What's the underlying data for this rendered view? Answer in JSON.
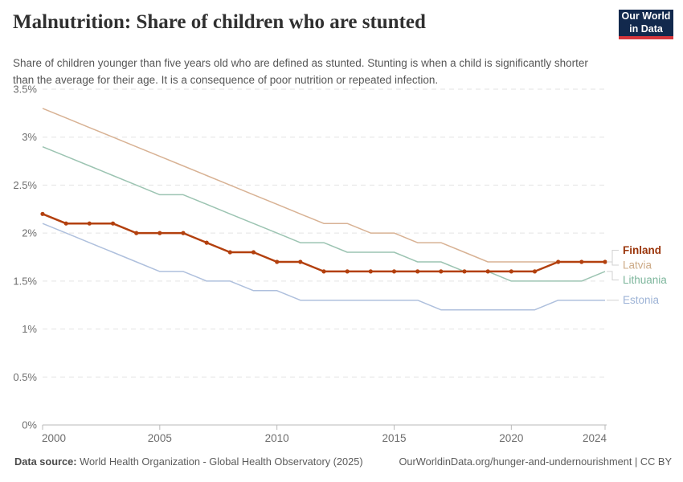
{
  "header": {
    "title": "Malnutrition: Share of children who are stunted",
    "subtitle": "Share of children younger than five years old who are defined as stunted. Stunting is when a child is significantly shorter than the average for their age. It is a consequence of poor nutrition or repeated infection.",
    "logo": {
      "line1": "Our World",
      "line2": "in Data",
      "bg_color": "#12294d",
      "accent_color": "#d7373c"
    }
  },
  "chart_data": {
    "type": "line",
    "title": "Malnutrition: Share of children who are stunted",
    "xlabel": "",
    "ylabel": "",
    "ylim": [
      0,
      3.5
    ],
    "grid": "dashed-horizontal",
    "legend_position": "right",
    "x": [
      2000,
      2001,
      2002,
      2003,
      2004,
      2005,
      2006,
      2007,
      2008,
      2009,
      2010,
      2011,
      2012,
      2013,
      2014,
      2015,
      2016,
      2017,
      2018,
      2019,
      2020,
      2021,
      2022,
      2023,
      2024
    ],
    "xticks": [
      2000,
      2005,
      2010,
      2015,
      2020,
      2024
    ],
    "yticks": [
      {
        "value": 0,
        "label": "0%"
      },
      {
        "value": 0.5,
        "label": "0.5%"
      },
      {
        "value": 1,
        "label": "1%"
      },
      {
        "value": 1.5,
        "label": "1.5%"
      },
      {
        "value": 2,
        "label": "2%"
      },
      {
        "value": 2.5,
        "label": "2.5%"
      },
      {
        "value": 3,
        "label": "3%"
      },
      {
        "value": 3.5,
        "label": "3.5%"
      }
    ],
    "series": [
      {
        "name": "Finland",
        "color": "#b3400e",
        "label_color": "#9a350b",
        "highlight": true,
        "markers": true,
        "values": [
          2.2,
          2.1,
          2.1,
          2.1,
          2.0,
          2.0,
          2.0,
          1.9,
          1.8,
          1.8,
          1.7,
          1.7,
          1.6,
          1.6,
          1.6,
          1.6,
          1.6,
          1.6,
          1.6,
          1.6,
          1.6,
          1.6,
          1.7,
          1.7,
          1.7
        ]
      },
      {
        "name": "Latvia",
        "color": "#d8b294",
        "label_color": "#cdab87",
        "highlight": false,
        "markers": false,
        "values": [
          3.3,
          3.2,
          3.1,
          3.0,
          2.9,
          2.8,
          2.7,
          2.6,
          2.5,
          2.4,
          2.3,
          2.2,
          2.1,
          2.1,
          2.0,
          2.0,
          1.9,
          1.9,
          1.8,
          1.7,
          1.7,
          1.7,
          1.7,
          1.7,
          1.7
        ]
      },
      {
        "name": "Lithuania",
        "color": "#9cc4b2",
        "label_color": "#7db69c",
        "highlight": false,
        "markers": false,
        "values": [
          2.9,
          2.8,
          2.7,
          2.6,
          2.5,
          2.4,
          2.4,
          2.3,
          2.2,
          2.1,
          2.0,
          1.9,
          1.9,
          1.8,
          1.8,
          1.8,
          1.7,
          1.7,
          1.6,
          1.6,
          1.5,
          1.5,
          1.5,
          1.5,
          1.6
        ]
      },
      {
        "name": "Estonia",
        "color": "#afc0dd",
        "label_color": "#9db3d6",
        "highlight": false,
        "markers": false,
        "values": [
          2.1,
          2.0,
          1.9,
          1.8,
          1.7,
          1.6,
          1.6,
          1.5,
          1.5,
          1.4,
          1.4,
          1.3,
          1.3,
          1.3,
          1.3,
          1.3,
          1.3,
          1.2,
          1.2,
          1.2,
          1.2,
          1.2,
          1.3,
          1.3,
          1.3
        ]
      }
    ]
  },
  "footer": {
    "source_label": "Data source:",
    "source": "World Health Organization - Global Health Observatory (2025)",
    "link": "OurWorldinData.org/hunger-and-undernourishment",
    "separator": " | ",
    "license": "CC BY"
  }
}
